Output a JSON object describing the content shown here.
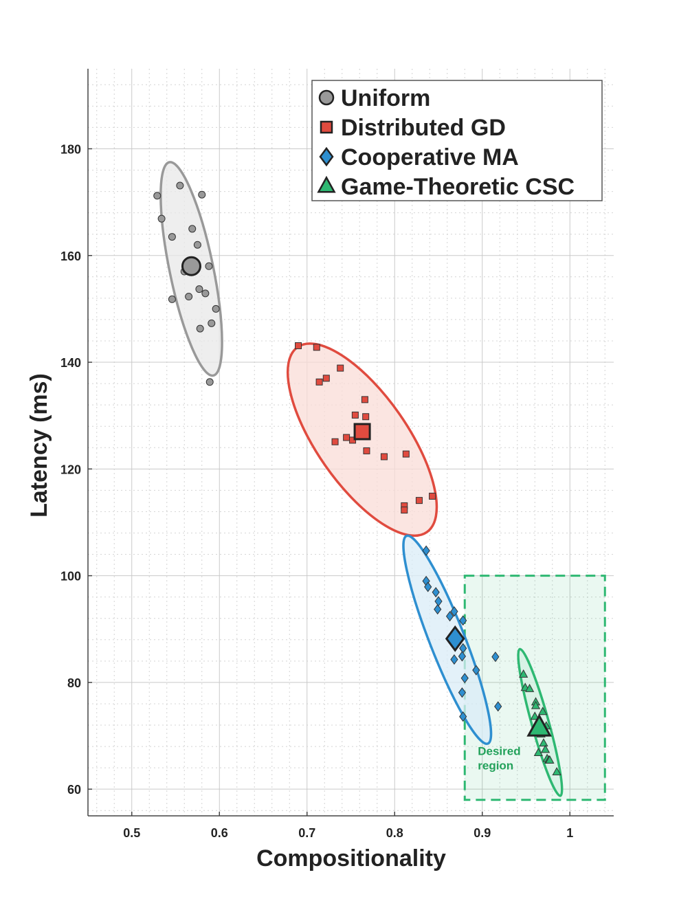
{
  "chart_data": {
    "type": "scatter",
    "xlabel": "Compositionality",
    "ylabel": "Latency (ms)",
    "xlim": [
      0.45,
      1.05
    ],
    "ylim": [
      55,
      195
    ],
    "xticks": [
      0.5,
      0.6,
      0.7,
      0.8,
      0.9,
      1.0
    ],
    "xtick_labels": [
      "0.5",
      "0.6",
      "0.7",
      "0.8",
      "0.9",
      "1"
    ],
    "yticks": [
      60,
      80,
      100,
      120,
      140,
      160,
      180
    ],
    "ytick_labels": [
      "60",
      "80",
      "100",
      "120",
      "140",
      "160",
      "180"
    ],
    "grid": true,
    "minor_grid": true,
    "legend_position": "top-right",
    "series": [
      {
        "name": "Uniform",
        "marker": "circle",
        "color": "#999999",
        "fill": "#e8e8e8",
        "mean": [
          0.568,
          158
        ],
        "ellipse": {
          "center": [
            0.568,
            157.5
          ],
          "x_extent": [
            0.53,
            0.6
          ],
          "y_extent": [
            137.5,
            177.5
          ]
        },
        "points": [
          [
            0.529,
            171.2
          ],
          [
            0.555,
            173.1
          ],
          [
            0.58,
            171.4
          ],
          [
            0.534,
            166.9
          ],
          [
            0.546,
            163.5
          ],
          [
            0.569,
            165
          ],
          [
            0.575,
            162
          ],
          [
            0.588,
            158
          ],
          [
            0.56,
            157
          ],
          [
            0.546,
            151.8
          ],
          [
            0.565,
            152.3
          ],
          [
            0.577,
            153.7
          ],
          [
            0.584,
            152.9
          ],
          [
            0.596,
            150
          ],
          [
            0.591,
            147.3
          ],
          [
            0.578,
            146.3
          ],
          [
            0.589,
            136.3
          ]
        ]
      },
      {
        "name": "Distributed GD",
        "marker": "square",
        "color": "#e04b3f",
        "fill": "#f9dcd7",
        "mean": [
          0.763,
          127
        ],
        "ellipse": {
          "center": [
            0.763,
            125.5
          ],
          "x_extent": [
            0.68,
            0.85
          ],
          "y_extent": [
            107.5,
            143.5
          ]
        },
        "points": [
          [
            0.69,
            143.1
          ],
          [
            0.711,
            142.8
          ],
          [
            0.738,
            138.9
          ],
          [
            0.722,
            137
          ],
          [
            0.714,
            136.3
          ],
          [
            0.766,
            133
          ],
          [
            0.755,
            130.1
          ],
          [
            0.767,
            129.8
          ],
          [
            0.745,
            125.9
          ],
          [
            0.752,
            125.4
          ],
          [
            0.732,
            125.1
          ],
          [
            0.768,
            123.4
          ],
          [
            0.788,
            122.3
          ],
          [
            0.813,
            122.8
          ],
          [
            0.843,
            114.9
          ],
          [
            0.828,
            114.1
          ],
          [
            0.811,
            113.1
          ],
          [
            0.811,
            112.3
          ]
        ]
      },
      {
        "name": "Cooperative MA",
        "marker": "diamond",
        "color": "#2e8fd0",
        "fill": "#d9ecf7",
        "mean": [
          0.869,
          88.2
        ],
        "ellipse": {
          "center": [
            0.86,
            88
          ],
          "x_extent": [
            0.815,
            0.915
          ],
          "y_extent": [
            68.5,
            107.5
          ]
        },
        "points": [
          [
            0.836,
            104.7
          ],
          [
            0.836,
            99
          ],
          [
            0.838,
            97.9
          ],
          [
            0.847,
            96.9
          ],
          [
            0.85,
            95.2
          ],
          [
            0.849,
            93.7
          ],
          [
            0.868,
            93.3
          ],
          [
            0.863,
            92.4
          ],
          [
            0.878,
            91.6
          ],
          [
            0.878,
            86.4
          ],
          [
            0.877,
            84.9
          ],
          [
            0.915,
            84.8
          ],
          [
            0.868,
            84.3
          ],
          [
            0.893,
            82.3
          ],
          [
            0.88,
            80.8
          ],
          [
            0.877,
            78.1
          ],
          [
            0.918,
            75.5
          ],
          [
            0.878,
            73.6
          ]
        ]
      },
      {
        "name": "Game-Theoretic CSC",
        "marker": "triangle",
        "color": "#2eb872",
        "fill": "#d3f2e1",
        "mean": [
          0.965,
          71.5
        ],
        "ellipse": {
          "center": [
            0.966,
            72.5
          ],
          "x_extent": [
            0.94,
            0.99
          ],
          "y_extent": [
            58.5,
            86
          ]
        },
        "points": [
          [
            0.947,
            81.5
          ],
          [
            0.949,
            79
          ],
          [
            0.954,
            78.8
          ],
          [
            0.961,
            76.3
          ],
          [
            0.961,
            75.6
          ],
          [
            0.969,
            74.5
          ],
          [
            0.96,
            73.6
          ],
          [
            0.973,
            71.8
          ],
          [
            0.967,
            70.3
          ],
          [
            0.97,
            68.6
          ],
          [
            0.972,
            67.4
          ],
          [
            0.964,
            66.8
          ],
          [
            0.974,
            65.7
          ],
          [
            0.976,
            65.4
          ],
          [
            0.977,
            65.4
          ],
          [
            0.985,
            63.2
          ]
        ]
      }
    ],
    "annotations": [
      {
        "type": "region",
        "label_lines": [
          "Desired",
          "region"
        ],
        "x_range": [
          0.88,
          1.04
        ],
        "y_range": [
          58,
          100
        ],
        "color": "#2eb872"
      }
    ]
  }
}
